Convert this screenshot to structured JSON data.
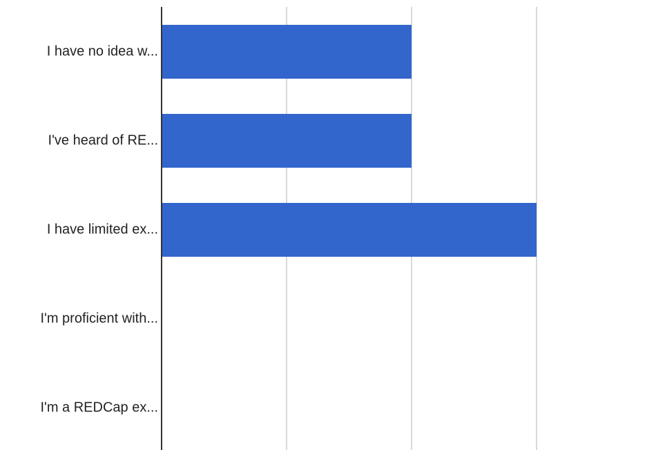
{
  "chart_data": {
    "type": "bar",
    "orientation": "horizontal",
    "categories": [
      "I have no idea w...",
      "I've heard of RE...",
      "I have limited ex...",
      "I'm proficient with...",
      "I'm a REDCap ex..."
    ],
    "values": [
      2,
      2,
      3,
      0,
      0
    ],
    "xlim": [
      0,
      3
    ],
    "x_gridlines": [
      1,
      2,
      3
    ],
    "grid": true,
    "legend": "none",
    "bar_color": "#3366cc",
    "grid_color": "#d9d9d9",
    "axis_color": "#333333",
    "title": "",
    "xlabel": "",
    "ylabel": ""
  }
}
